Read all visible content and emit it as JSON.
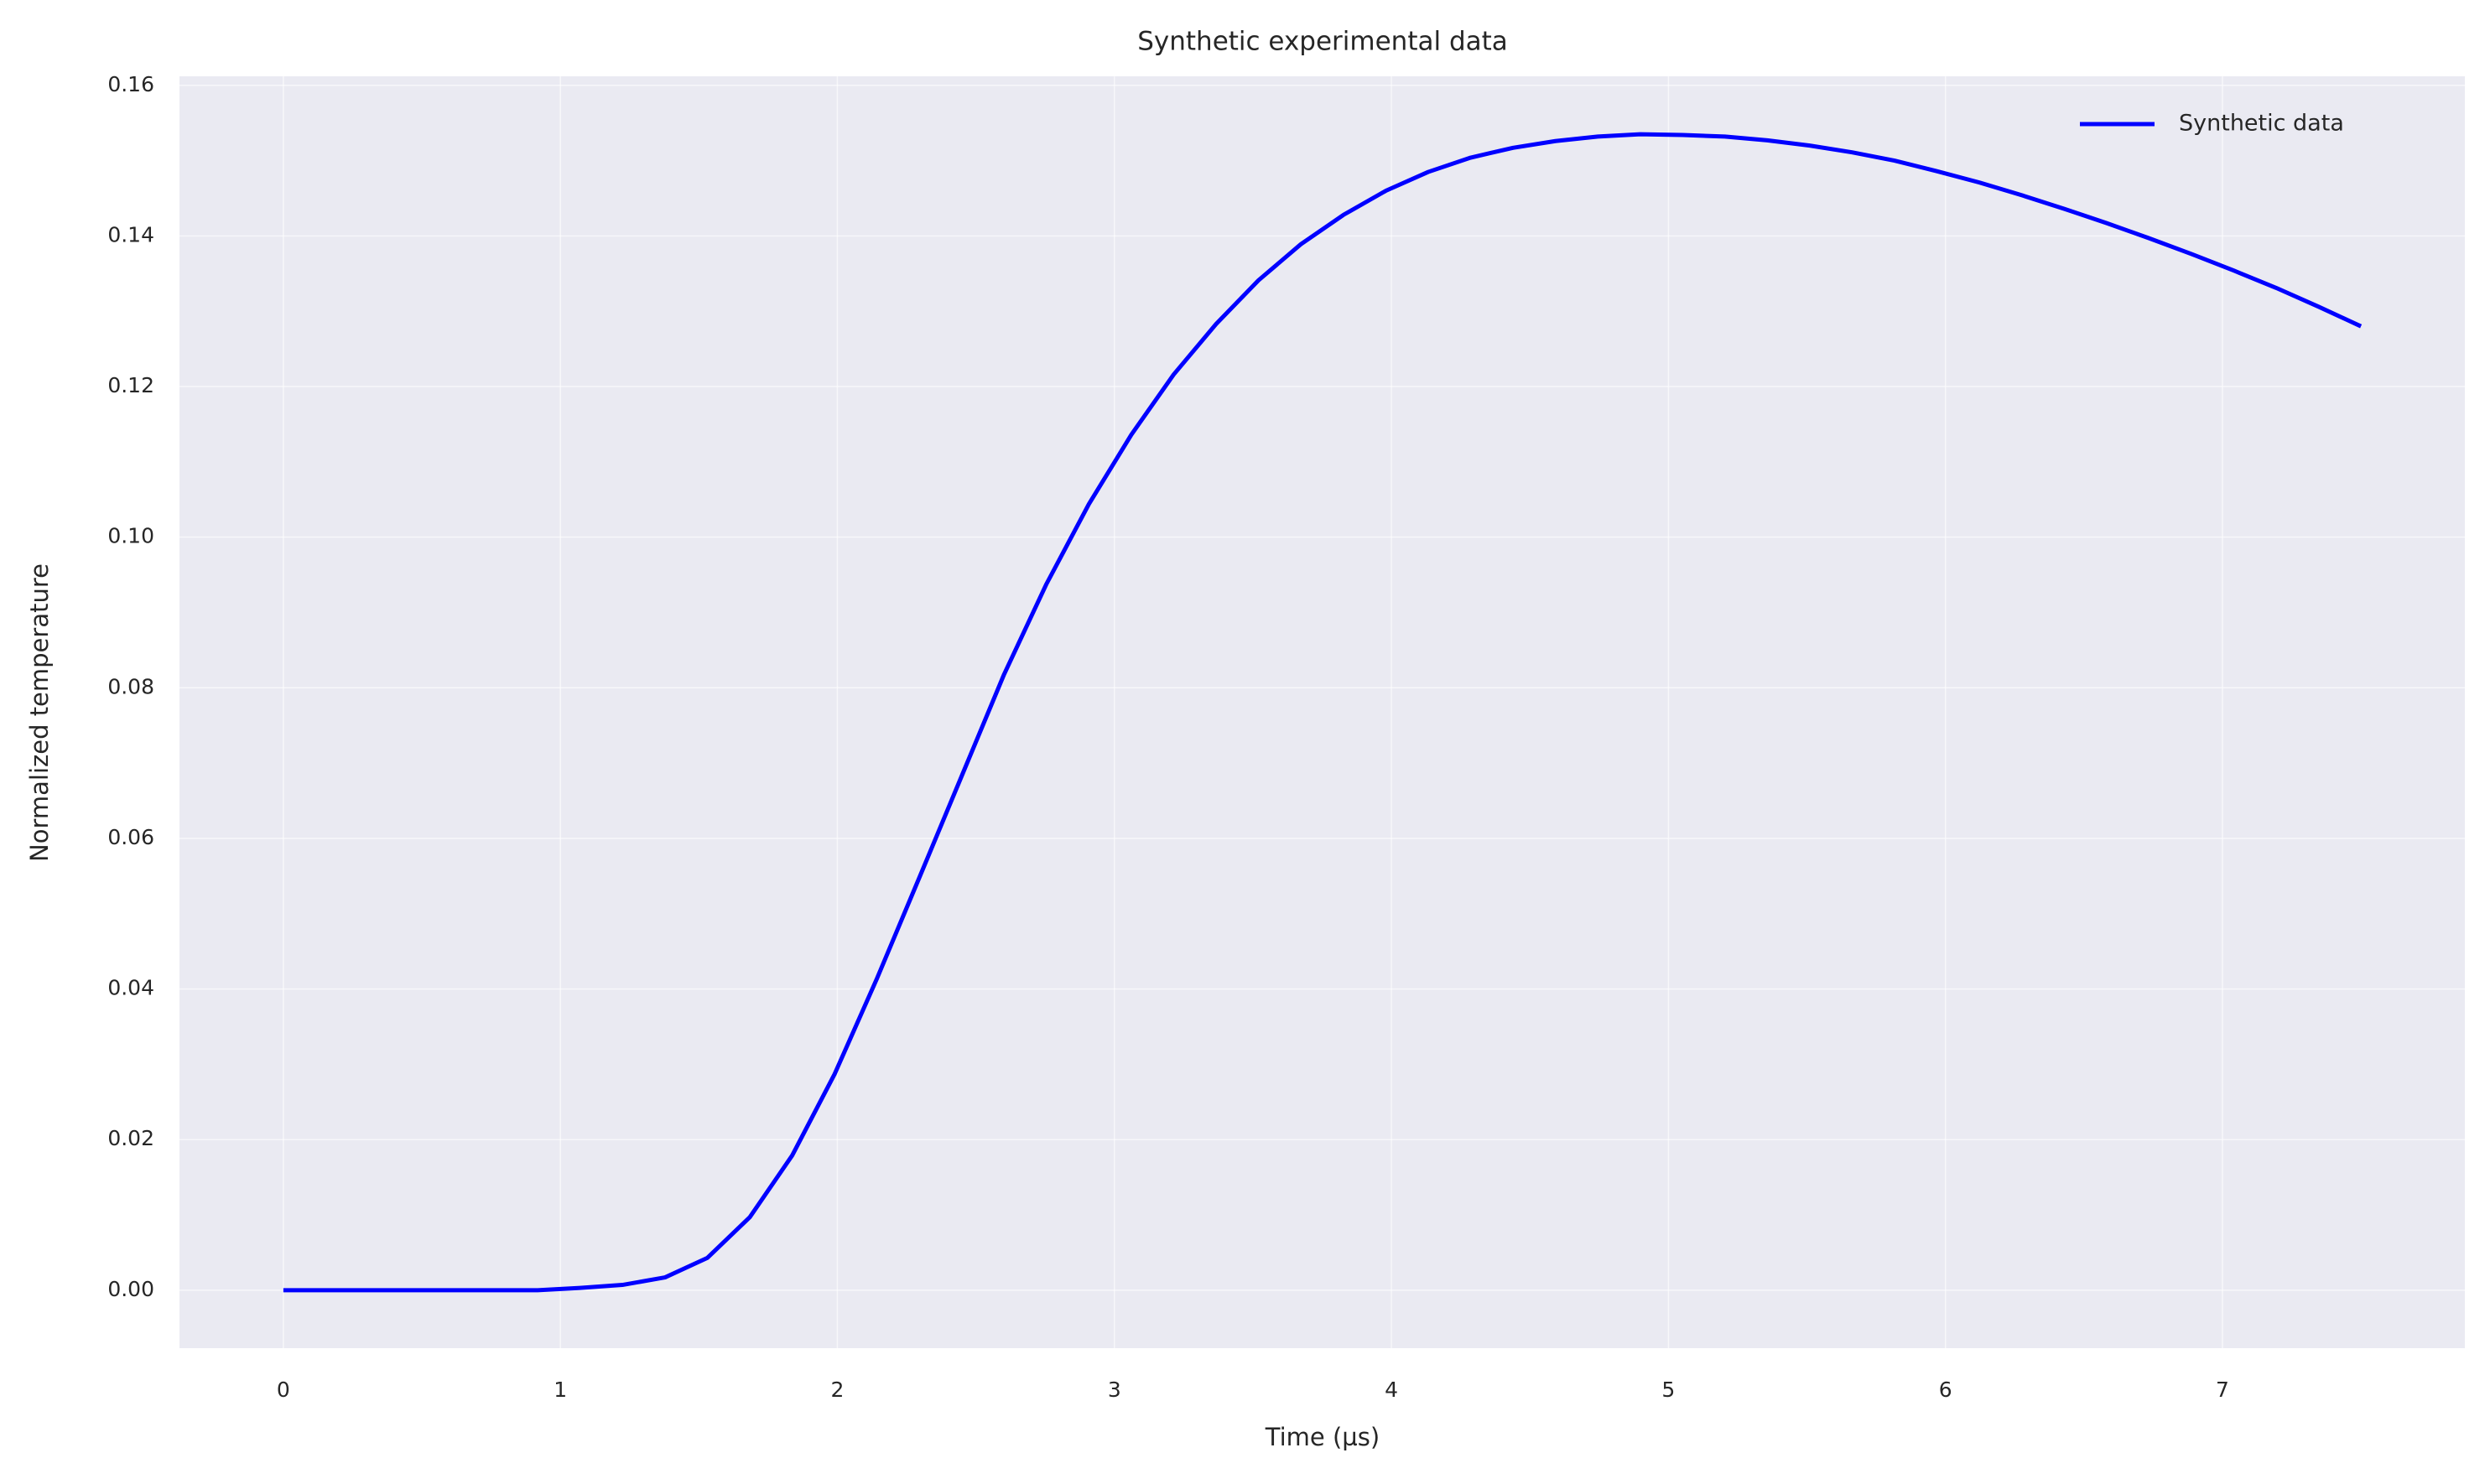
{
  "chart_data": {
    "type": "line",
    "title": "Synthetic experimental data",
    "xlabel": "Time (µs)",
    "ylabel": "Normalized temperature",
    "x": [
      0,
      0.153,
      0.306,
      0.459,
      0.612,
      0.765,
      0.918,
      1.071,
      1.224,
      1.378,
      1.531,
      1.684,
      1.837,
      1.99,
      2.143,
      2.296,
      2.449,
      2.602,
      2.755,
      2.908,
      3.061,
      3.214,
      3.367,
      3.52,
      3.673,
      3.827,
      3.98,
      4.133,
      4.286,
      4.439,
      4.592,
      4.745,
      4.898,
      5.051,
      5.204,
      5.357,
      5.51,
      5.663,
      5.816,
      5.969,
      6.122,
      6.276,
      6.429,
      6.582,
      6.735,
      6.888,
      7.041,
      7.194,
      7.347,
      7.5
    ],
    "series": [
      {
        "name": "Synthetic data",
        "color": "#0000ff",
        "values": [
          0,
          0,
          0,
          0,
          0,
          0,
          0,
          0.0003,
          0.0007,
          0.0017,
          0.0043,
          0.0097,
          0.0179,
          0.0287,
          0.0414,
          0.0548,
          0.0683,
          0.0818,
          0.0938,
          0.1044,
          0.1136,
          0.1216,
          0.1283,
          0.1341,
          0.1389,
          0.1428,
          0.146,
          0.1485,
          0.1504,
          0.1517,
          0.1526,
          0.1532,
          0.1535,
          0.1534,
          0.1532,
          0.1527,
          0.152,
          0.1511,
          0.15,
          0.1486,
          0.1471,
          0.1454,
          0.1436,
          0.1417,
          0.1397,
          0.1376,
          0.1354,
          0.1331,
          0.1306,
          0.128
        ]
      }
    ],
    "xlim": [
      -0.375,
      7.875
    ],
    "xticks": [
      0,
      1,
      2,
      3,
      4,
      5,
      6,
      7
    ],
    "ylim": [
      -0.0077,
      0.1612
    ],
    "yticks": [
      {
        "value": 0,
        "label": "0.00"
      },
      0.02,
      0.04,
      0.06,
      0.08,
      {
        "value": 0.1,
        "label": "0.10"
      },
      0.12,
      0.14,
      0.16
    ],
    "grid": true,
    "legend": "upper right"
  }
}
